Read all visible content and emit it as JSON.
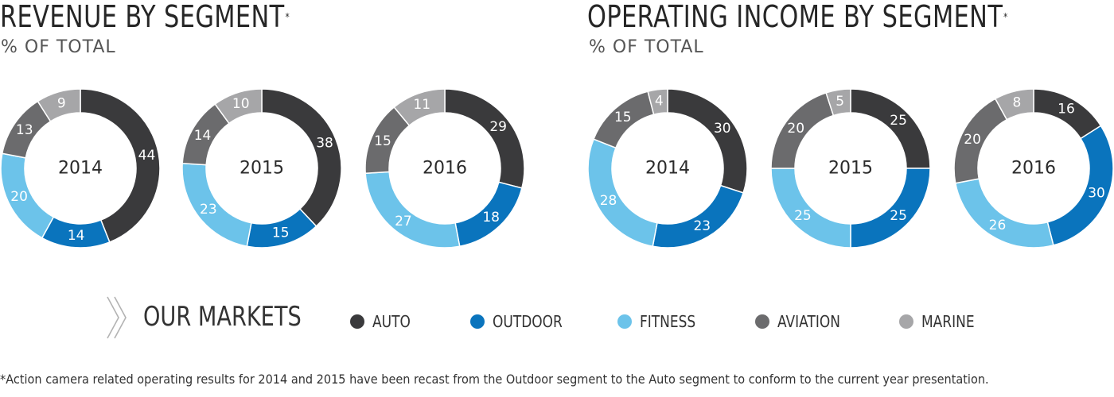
{
  "headers": {
    "revenue_title": "REVENUE BY SEGMENT",
    "revenue_mark": "*",
    "revenue_subtitle": "% OF TOTAL",
    "operating_title": "OPERATING INCOME BY SEGMENT",
    "operating_mark": "*",
    "operating_subtitle": "% OF TOTAL"
  },
  "legend": {
    "title": "OUR MARKETS",
    "items": [
      {
        "label": "AUTO",
        "color": "#3a3a3c"
      },
      {
        "label": "OUTDOOR",
        "color": "#0a74bd"
      },
      {
        "label": "FITNESS",
        "color": "#6cc3ea"
      },
      {
        "label": "AVIATION",
        "color": "#6b6b6d"
      },
      {
        "label": "MARINE",
        "color": "#a6a6a8"
      }
    ]
  },
  "footnote": "*Action camera related operating results for 2014 and 2015 have been recast from the Outdoor segment to the Auto segment to conform to the current year presentation.",
  "chart_data": [
    {
      "type": "pie",
      "group": "revenue",
      "title": "2014",
      "categories": [
        "AUTO",
        "OUTDOOR",
        "FITNESS",
        "AVIATION",
        "MARINE"
      ],
      "values": [
        44,
        14,
        20,
        13,
        9
      ]
    },
    {
      "type": "pie",
      "group": "revenue",
      "title": "2015",
      "categories": [
        "AUTO",
        "OUTDOOR",
        "FITNESS",
        "AVIATION",
        "MARINE"
      ],
      "values": [
        38,
        15,
        23,
        14,
        10
      ]
    },
    {
      "type": "pie",
      "group": "revenue",
      "title": "2016",
      "categories": [
        "AUTO",
        "OUTDOOR",
        "FITNESS",
        "AVIATION",
        "MARINE"
      ],
      "values": [
        29,
        18,
        27,
        15,
        11
      ]
    },
    {
      "type": "pie",
      "group": "operating_income",
      "title": "2014",
      "categories": [
        "AUTO",
        "OUTDOOR",
        "FITNESS",
        "AVIATION",
        "MARINE"
      ],
      "values": [
        30,
        23,
        28,
        15,
        4
      ]
    },
    {
      "type": "pie",
      "group": "operating_income",
      "title": "2015",
      "categories": [
        "AUTO",
        "OUTDOOR",
        "FITNESS",
        "AVIATION",
        "MARINE"
      ],
      "values": [
        25,
        25,
        25,
        20,
        5
      ]
    },
    {
      "type": "pie",
      "group": "operating_income",
      "title": "2016",
      "categories": [
        "AUTO",
        "OUTDOOR",
        "FITNESS",
        "AVIATION",
        "MARINE"
      ],
      "values": [
        16,
        30,
        26,
        20,
        8
      ]
    }
  ]
}
